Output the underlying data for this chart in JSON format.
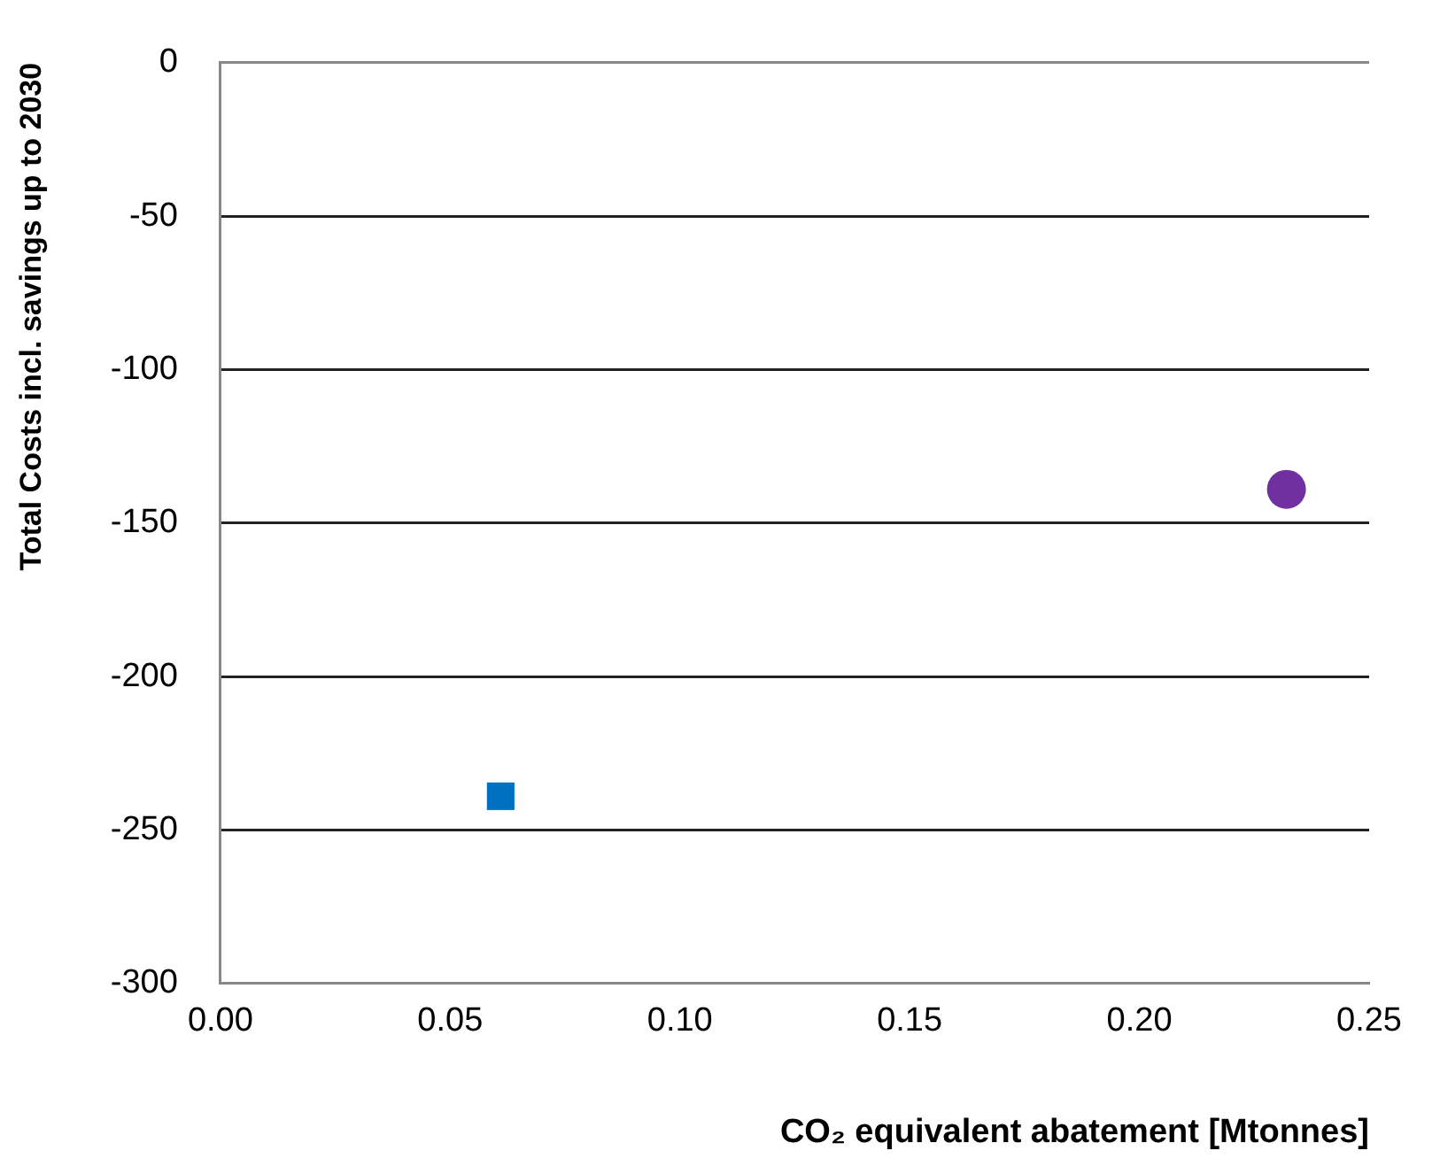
{
  "chart_data": {
    "type": "scatter",
    "xlabel": "CO₂ equivalent abatement [Mtonnes]",
    "ylabel": "Total Costs incl. savings up to 2030",
    "xlim": [
      0,
      0.25
    ],
    "xticks": [
      {
        "value": 0,
        "label": "0.00"
      },
      {
        "value": 0.05,
        "label": "0.05"
      },
      {
        "value": 0.1,
        "label": "0.10"
      },
      {
        "value": 0.15,
        "label": "0.15"
      },
      {
        "value": 0.2,
        "label": "0.20"
      },
      {
        "value": 0.25,
        "label": "0.25"
      }
    ],
    "ylim": [
      -300,
      0
    ],
    "yticks": [
      -300,
      -250,
      -200,
      -150,
      -100,
      -50,
      0
    ],
    "grid": "y",
    "series": [
      {
        "color": "#0070c0",
        "marker": "square",
        "x": [
          0.061
        ],
        "values": [
          -239
        ]
      },
      {
        "color": "#7030a0",
        "marker": "circle",
        "x": [
          0.232
        ],
        "values": [
          -139
        ]
      }
    ]
  }
}
